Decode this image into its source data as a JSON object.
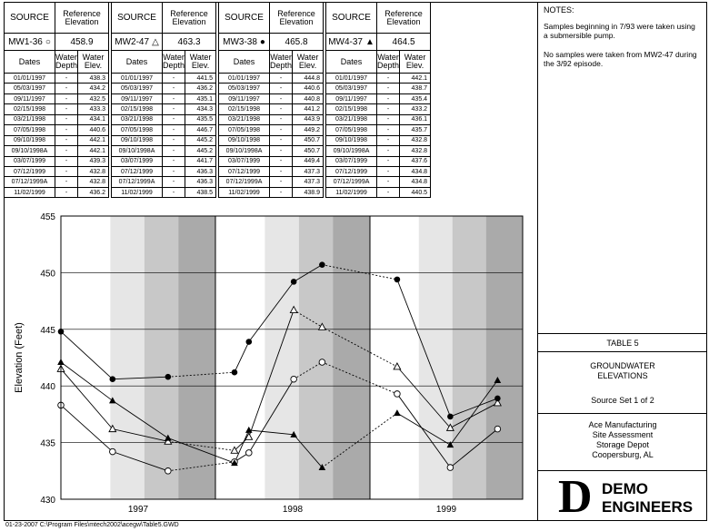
{
  "table": {
    "source_label": "SOURCE",
    "ref_label": "Reference Elevation",
    "dates_label": "Dates",
    "depth_label": "Water Depth",
    "elev_label": "Water Elev.",
    "wells": [
      {
        "id": "MW1-36",
        "symbol": "○",
        "ref": "458.9",
        "rows": [
          [
            "01/01/1997",
            "-",
            "438.3"
          ],
          [
            "05/03/1997",
            "-",
            "434.2"
          ],
          [
            "09/11/1997",
            "-",
            "432.5"
          ],
          [
            "02/15/1998",
            "-",
            "433.3"
          ],
          [
            "03/21/1998",
            "-",
            "434.1"
          ],
          [
            "07/05/1998",
            "-",
            "440.6"
          ],
          [
            "09/10/1998",
            "-",
            "442.1"
          ],
          [
            "09/10/1998A",
            "-",
            "442.1"
          ],
          [
            "03/07/1999",
            "-",
            "439.3"
          ],
          [
            "07/12/1999",
            "-",
            "432.8"
          ],
          [
            "07/12/1999A",
            "-",
            "432.8"
          ],
          [
            "11/02/1999",
            "-",
            "436.2"
          ]
        ]
      },
      {
        "id": "MW2-47",
        "symbol": "△",
        "ref": "463.3",
        "rows": [
          [
            "01/01/1997",
            "-",
            "441.5"
          ],
          [
            "05/03/1997",
            "-",
            "436.2"
          ],
          [
            "09/11/1997",
            "-",
            "435.1"
          ],
          [
            "02/15/1998",
            "-",
            "434.3"
          ],
          [
            "03/21/1998",
            "-",
            "435.5"
          ],
          [
            "07/05/1998",
            "-",
            "446.7"
          ],
          [
            "09/10/1998",
            "-",
            "445.2"
          ],
          [
            "09/10/1998A",
            "-",
            "445.2"
          ],
          [
            "03/07/1999",
            "-",
            "441.7"
          ],
          [
            "07/12/1999",
            "-",
            "436.3"
          ],
          [
            "07/12/1999A",
            "-",
            "436.3"
          ],
          [
            "11/02/1999",
            "-",
            "438.5"
          ]
        ]
      },
      {
        "id": "MW3-38",
        "symbol": "●",
        "ref": "465.8",
        "rows": [
          [
            "01/01/1997",
            "-",
            "444.8"
          ],
          [
            "05/03/1997",
            "-",
            "440.6"
          ],
          [
            "09/11/1997",
            "-",
            "440.8"
          ],
          [
            "02/15/1998",
            "-",
            "441.2"
          ],
          [
            "03/21/1998",
            "-",
            "443.9"
          ],
          [
            "07/05/1998",
            "-",
            "449.2"
          ],
          [
            "09/10/1998",
            "-",
            "450.7"
          ],
          [
            "09/10/1998A",
            "-",
            "450.7"
          ],
          [
            "03/07/1999",
            "-",
            "449.4"
          ],
          [
            "07/12/1999",
            "-",
            "437.3"
          ],
          [
            "07/12/1999A",
            "-",
            "437.3"
          ],
          [
            "11/02/1999",
            "-",
            "438.9"
          ]
        ]
      },
      {
        "id": "MW4-37",
        "symbol": "▲",
        "ref": "464.5",
        "rows": [
          [
            "01/01/1997",
            "-",
            "442.1"
          ],
          [
            "05/03/1997",
            "-",
            "438.7"
          ],
          [
            "09/11/1997",
            "-",
            "435.4"
          ],
          [
            "02/15/1998",
            "-",
            "433.2"
          ],
          [
            "03/21/1998",
            "-",
            "436.1"
          ],
          [
            "07/05/1998",
            "-",
            "435.7"
          ],
          [
            "09/10/1998",
            "-",
            "432.8"
          ],
          [
            "09/10/1998A",
            "-",
            "432.8"
          ],
          [
            "03/07/1999",
            "-",
            "437.6"
          ],
          [
            "07/12/1999",
            "-",
            "434.8"
          ],
          [
            "07/12/1999A",
            "-",
            "434.8"
          ],
          [
            "11/02/1999",
            "-",
            "440.5"
          ]
        ]
      }
    ]
  },
  "notes": {
    "title": "NOTES:",
    "items": [
      "Samples beginning in 7/93 were taken using a submersible pump.",
      "No samples were taken from MW2-47 during the 3/92 episode."
    ]
  },
  "title_block": {
    "table_no": "TABLE 5",
    "title_line1": "GROUNDWATER",
    "title_line2": "ELEVATIONS",
    "source_set": "Source Set 1 of 2",
    "client": [
      "Ace Manufacturing",
      "Site Assessment",
      "Storage Depot",
      "Coopersburg, AL"
    ],
    "logo_letter": "D",
    "logo_line1": "DEMO",
    "logo_line2": "ENGINEERS"
  },
  "footer": "01-23-2007  C:\\Program Files\\mtech2002\\acegw\\Table5.GWD",
  "colors": {
    "band_light": "#e6e6e6",
    "band_mid": "#c8c8c8",
    "band_dark": "#aaaaaa",
    "grid": "#000000",
    "line": "#000000"
  },
  "chart_data": {
    "type": "line",
    "ylabel": "Elevation (Feet)",
    "ylim": [
      430,
      455
    ],
    "yticks": [
      430,
      435,
      440,
      445,
      450,
      455
    ],
    "years": [
      "1997",
      "1998",
      "1999"
    ],
    "x": [
      "1997-01-01",
      "1997-05-03",
      "1997-09-11",
      "1998-02-15",
      "1998-03-21",
      "1998-07-05",
      "1998-09-10",
      "1999-03-07",
      "1999-07-12",
      "1999-11-02"
    ],
    "series": [
      {
        "name": "MW1-36",
        "marker": "open-circle",
        "values": [
          438.3,
          434.2,
          432.5,
          433.3,
          434.1,
          440.6,
          442.1,
          439.3,
          432.8,
          436.2
        ],
        "dashed_segments": [
          2,
          5,
          6
        ]
      },
      {
        "name": "MW2-47",
        "marker": "open-triangle",
        "values": [
          441.5,
          436.2,
          435.1,
          434.3,
          435.5,
          446.7,
          445.2,
          441.7,
          436.3,
          438.5
        ],
        "dashed_segments": [
          2,
          5,
          6
        ]
      },
      {
        "name": "MW3-38",
        "marker": "filled-circle",
        "values": [
          444.8,
          440.6,
          440.8,
          441.2,
          443.9,
          449.2,
          450.7,
          449.4,
          437.3,
          438.9
        ],
        "dashed_segments": [
          2,
          6
        ]
      },
      {
        "name": "MW4-37",
        "marker": "filled-triangle",
        "values": [
          442.1,
          438.7,
          435.4,
          433.2,
          436.1,
          435.7,
          432.8,
          437.6,
          434.8,
          440.5
        ],
        "dashed_segments": [
          6
        ]
      }
    ]
  }
}
